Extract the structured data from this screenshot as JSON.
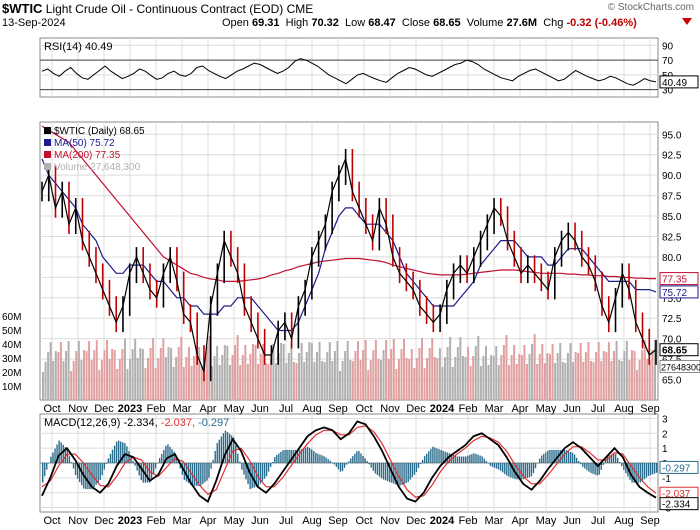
{
  "header": {
    "symbol": "$WTIC",
    "name": "Light Crude Oil - Continuous Contract (EOD)",
    "exchange": "CME",
    "date": "13-Sep-2024",
    "open_label": "Open",
    "open": "69.31",
    "high_label": "High",
    "high": "70.32",
    "low_label": "Low",
    "low": "68.47",
    "close_label": "Close",
    "close": "68.65",
    "volume_label": "Volume",
    "volume": "27.6M",
    "chg_label": "Chg",
    "chg": "-0.32 (-0.46%)",
    "watermark": "© StockCharts.com",
    "down_color": "#d00000"
  },
  "chart_data": [
    {
      "type": "line",
      "title": "RSI(14) 40.49",
      "ylim": [
        20,
        100
      ],
      "yticks": [
        "90",
        "70",
        "50",
        "30"
      ],
      "reference_lines": [
        30,
        70
      ],
      "last_value_label": "40.49",
      "series": [
        {
          "name": "RSI(14)",
          "values": [
            55,
            58,
            52,
            48,
            55,
            60,
            52,
            46,
            44,
            50,
            56,
            62,
            55,
            50,
            45,
            48,
            52,
            58,
            55,
            49,
            44,
            46,
            52,
            55,
            50,
            48,
            52,
            60,
            62,
            56,
            52,
            48,
            45,
            50,
            55,
            58,
            62,
            66,
            64,
            60,
            56,
            52,
            55,
            60,
            68,
            72,
            70,
            66,
            62,
            56,
            50,
            46,
            42,
            38,
            44,
            50,
            52,
            48,
            45,
            42,
            40,
            46,
            52,
            56,
            60,
            58,
            54,
            50,
            48,
            52,
            56,
            60,
            64,
            66,
            70,
            68,
            64,
            58,
            54,
            50,
            46,
            44,
            42,
            48,
            52,
            56,
            58,
            54,
            50,
            46,
            42,
            44,
            50,
            56,
            52,
            48,
            45,
            42,
            44,
            48,
            46,
            42,
            38,
            36,
            40,
            45,
            42,
            40.49
          ]
        }
      ],
      "color": "#000000"
    },
    {
      "type": "line",
      "title": "$WTIC (Daily) 68.65",
      "ylim": [
        62.5,
        96.5
      ],
      "yticks": [
        "95.0",
        "92.5",
        "90.0",
        "87.5",
        "85.0",
        "82.5",
        "80.0",
        "77.5",
        "75.0",
        "72.5",
        "70.0",
        "67.5",
        "65.0"
      ],
      "x_labels": [
        "Oct",
        "Nov",
        "Dec",
        "2023",
        "Feb",
        "Mar",
        "Apr",
        "May",
        "Jun",
        "Jul",
        "Aug",
        "Sep",
        "Oct",
        "Nov",
        "Dec",
        "2024",
        "Feb",
        "Mar",
        "Apr",
        "May",
        "Jun",
        "Jul",
        "Aug",
        "Sep"
      ],
      "volume_ticks": [
        "60M",
        "50M",
        "40M",
        "30M",
        "20M",
        "10M"
      ],
      "legend": [
        {
          "label": "$WTIC (Daily) 68.65",
          "color": "#000000"
        },
        {
          "label": "MA(50) 75.72",
          "color": "#1c1c8c"
        },
        {
          "label": "MA(200) 77.35",
          "color": "#c01030"
        },
        {
          "label": "Volume 27,648,300",
          "color": "#b0b0b0"
        }
      ],
      "series": [
        {
          "name": "$WTIC (Daily)",
          "values": [
            88,
            90,
            86,
            88,
            84,
            86,
            82,
            80,
            78,
            76,
            74,
            72,
            74,
            78,
            80,
            78,
            76,
            75,
            78,
            80,
            77,
            73,
            72,
            68,
            66,
            74,
            78,
            82,
            80,
            78,
            74,
            72,
            70,
            68,
            68,
            71,
            72,
            70,
            74,
            76,
            80,
            82,
            84,
            88,
            90,
            92,
            88,
            86,
            84,
            82,
            86,
            84,
            80,
            78,
            77,
            76,
            74,
            73,
            72,
            73,
            76,
            78,
            79,
            78,
            80,
            82,
            84,
            86,
            85,
            82,
            80,
            78,
            79,
            78,
            77,
            76,
            80,
            82,
            83,
            82,
            80,
            79,
            77,
            74,
            72,
            75,
            78,
            76,
            72,
            70,
            68,
            68.65
          ]
        },
        {
          "name": "MA(50)",
          "values": [
            92,
            90,
            89,
            88,
            87,
            86,
            84,
            83,
            82,
            80,
            79,
            78,
            78,
            79,
            79,
            79,
            78,
            77,
            77,
            76,
            75,
            75,
            74,
            74,
            73,
            73,
            73,
            74,
            74,
            75,
            75,
            75,
            74,
            73,
            72,
            71,
            71,
            71,
            72,
            74,
            76,
            78,
            81,
            83,
            85,
            86,
            86,
            85,
            84,
            84,
            84,
            83,
            82,
            80,
            78,
            77,
            76,
            75,
            74,
            74,
            74,
            74,
            75,
            76,
            77,
            79,
            80,
            81,
            82,
            82,
            82,
            81,
            80,
            80,
            80,
            79,
            79,
            80,
            81,
            81,
            81,
            80,
            79,
            78,
            77,
            77,
            77,
            77,
            76,
            76,
            76,
            75.72
          ]
        },
        {
          "name": "MA(200)",
          "values": [
            96,
            95.5,
            95,
            94.5,
            94,
            93,
            92,
            91,
            90,
            89,
            88,
            87,
            86,
            85,
            84,
            83,
            82,
            81,
            80,
            79.5,
            79,
            78.5,
            78,
            77.8,
            77.5,
            77.3,
            77.2,
            77,
            77,
            77,
            77.1,
            77.2,
            77.3,
            77.5,
            77.8,
            78,
            78.3,
            78.5,
            78.8,
            79,
            79.2,
            79.4,
            79.5,
            79.6,
            79.7,
            79.8,
            79.8,
            79.8,
            79.7,
            79.6,
            79.5,
            79.3,
            79,
            78.8,
            78.6,
            78.4,
            78.2,
            78,
            77.9,
            77.8,
            77.8,
            77.8,
            77.8,
            77.9,
            78,
            78.1,
            78.2,
            78.3,
            78.4,
            78.4,
            78.4,
            78.3,
            78.2,
            78.1,
            78,
            78,
            78,
            78,
            77.9,
            77.9,
            77.8,
            77.8,
            77.7,
            77.7,
            77.6,
            77.6,
            77.5,
            77.5,
            77.4,
            77.4,
            77.35,
            77.35
          ]
        }
      ],
      "last_labels": {
        "ma200": "77.35",
        "ma50": "75.72",
        "close": "68.65",
        "volume": "27648300"
      }
    },
    {
      "type": "line",
      "title": "MACD(12,26,9) -2.334, -2.037, -0.297",
      "title_parts": {
        "name": "MACD(12,26,9)",
        "macd": "-2.334",
        "signal": "-2.037",
        "hist": "-0.297"
      },
      "ylim": [
        -3.3,
        3.3
      ],
      "yticks": [
        "3",
        "2",
        "1",
        "0",
        "-1",
        "-2",
        "-3"
      ],
      "x_labels": [
        "Oct",
        "Nov",
        "Dec",
        "2023",
        "Feb",
        "Mar",
        "Apr",
        "May",
        "Jun",
        "Jul",
        "Aug",
        "Sep",
        "Oct",
        "Nov",
        "Dec",
        "2024",
        "Feb",
        "Mar",
        "Apr",
        "May",
        "Jun",
        "Jul",
        "Aug",
        "Sep"
      ],
      "series": [
        {
          "name": "MACD",
          "values": [
            -2.2,
            -1.0,
            0.5,
            1.0,
            0.2,
            -0.8,
            -1.6,
            -2.0,
            -1.4,
            -0.2,
            0.6,
            0.4,
            -0.4,
            -1.2,
            -0.8,
            0.3,
            0.6,
            -0.4,
            -1.4,
            -2.2,
            -2.6,
            -1.2,
            0.5,
            1.6,
            0.8,
            -0.6,
            -1.6,
            -2.0,
            -1.4,
            -0.6,
            0.2,
            1.0,
            1.8,
            2.2,
            2.4,
            2.2,
            1.6,
            2.0,
            2.8,
            2.6,
            1.8,
            0.8,
            -0.4,
            -1.6,
            -2.4,
            -2.6,
            -2.0,
            -1.0,
            -0.2,
            0.4,
            0.8,
            1.2,
            1.8,
            2.0,
            1.6,
            1.2,
            0.4,
            -0.6,
            -1.4,
            -1.8,
            -1.2,
            -0.4,
            0.3,
            1.0,
            1.4,
            1.0,
            0.4,
            -0.2,
            0.4,
            1.0,
            0.4,
            -0.8,
            -1.6,
            -2.0,
            -2.334
          ]
        },
        {
          "name": "Signal",
          "values": [
            -1.6,
            -1.2,
            -0.2,
            0.6,
            0.6,
            0.0,
            -0.8,
            -1.5,
            -1.6,
            -0.9,
            0.0,
            0.4,
            0.2,
            -0.6,
            -0.9,
            -0.3,
            0.3,
            0.1,
            -0.7,
            -1.5,
            -2.1,
            -1.8,
            -0.5,
            0.8,
            1.0,
            0.2,
            -0.9,
            -1.6,
            -1.6,
            -1.0,
            -0.2,
            0.6,
            1.3,
            1.9,
            2.2,
            2.2,
            1.9,
            1.9,
            2.4,
            2.5,
            2.1,
            1.3,
            0.2,
            -0.9,
            -1.8,
            -2.3,
            -2.2,
            -1.5,
            -0.6,
            0.1,
            0.6,
            1.0,
            1.5,
            1.8,
            1.7,
            1.4,
            0.8,
            -0.1,
            -0.9,
            -1.4,
            -1.4,
            -0.8,
            -0.1,
            0.6,
            1.1,
            1.1,
            0.7,
            0.2,
            0.2,
            0.7,
            0.6,
            -0.2,
            -1.0,
            -1.6,
            -2.037
          ]
        }
      ],
      "last_labels": {
        "macd": "-2.334",
        "signal": "-2.037",
        "hist": "-0.297"
      }
    }
  ],
  "colors": {
    "price": "#000000",
    "down_bar": "#c00000",
    "ma50": "#1c1c8c",
    "ma200": "#c01030",
    "volume_up": "#b0b0b0",
    "volume_down": "#e0a0a0",
    "macd": "#000000",
    "signal": "#e03030",
    "hist": "#2a6c8c",
    "rsi": "#000000",
    "grid": "#dcdcdc"
  }
}
